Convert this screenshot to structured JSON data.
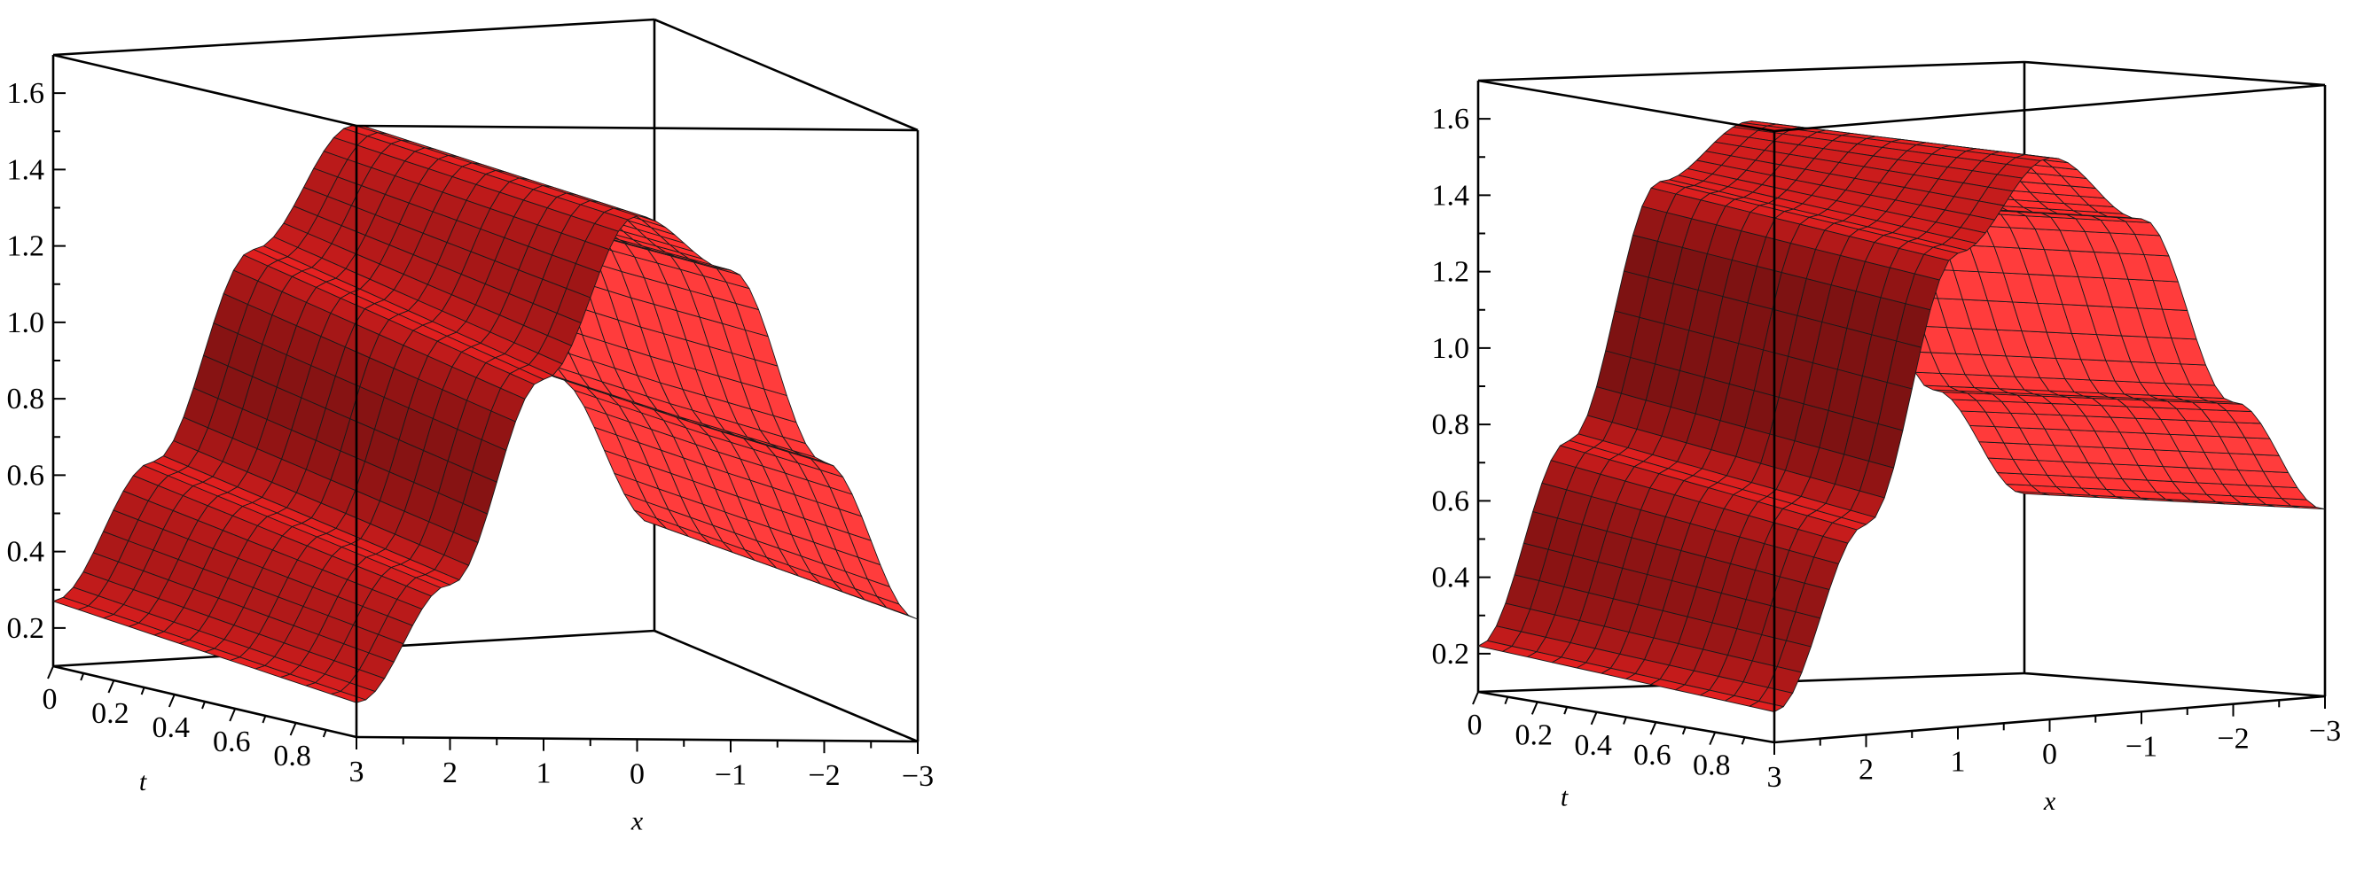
{
  "chart_data": [
    {
      "type": "surface",
      "title": "",
      "xlabel": "x",
      "ylabel": "t",
      "zlabel": "",
      "x_ticks": [
        "3",
        "2",
        "1",
        "0",
        "−1",
        "−2",
        "−3"
      ],
      "t_ticks": [
        "0",
        "0.2",
        "0.4",
        "0.6",
        "0.8"
      ],
      "z_ticks": [
        "0.2",
        "0.4",
        "0.6",
        "0.8",
        "1.0",
        "1.2",
        "1.4",
        "1.6"
      ],
      "xlim": [
        -3,
        3
      ],
      "tlim": [
        0,
        1
      ],
      "zlim": [
        0.1,
        1.7
      ],
      "surface_color": "#e52020",
      "samples": {
        "x": [
          -3,
          -2,
          -1,
          0,
          1,
          2,
          3
        ],
        "t": [
          0,
          0.5,
          1
        ],
        "z": [
          [
            0.38,
            0.78,
            1.28,
            1.47,
            1.16,
            0.62,
            0.27
          ],
          [
            0.4,
            0.8,
            1.3,
            1.47,
            1.1,
            0.56,
            0.23
          ],
          [
            0.42,
            0.83,
            1.33,
            1.47,
            1.04,
            0.5,
            0.19
          ]
        ]
      }
    },
    {
      "type": "surface",
      "title": "",
      "xlabel": "x",
      "ylabel": "t",
      "zlabel": "",
      "x_ticks": [
        "3",
        "2",
        "1",
        "0",
        "−1",
        "−2",
        "−3"
      ],
      "t_ticks": [
        "0",
        "0.2",
        "0.4",
        "0.6",
        "0.8"
      ],
      "z_ticks": [
        "0.2",
        "0.4",
        "0.6",
        "0.8",
        "1.0",
        "1.2",
        "1.4",
        "1.6"
      ],
      "xlim": [
        -3,
        3
      ],
      "tlim": [
        0,
        1
      ],
      "zlim": [
        0.1,
        1.7
      ],
      "surface_color": "#e52020",
      "samples": {
        "x": [
          -3,
          -2,
          -1,
          0,
          1,
          2,
          3
        ],
        "t": [
          0,
          0.5,
          1
        ],
        "z": [
          [
            0.57,
            0.85,
            1.35,
            1.57,
            1.42,
            0.75,
            0.22
          ],
          [
            0.58,
            0.87,
            1.37,
            1.57,
            1.38,
            0.7,
            0.2
          ],
          [
            0.59,
            0.89,
            1.39,
            1.57,
            1.34,
            0.65,
            0.18
          ]
        ]
      }
    }
  ]
}
